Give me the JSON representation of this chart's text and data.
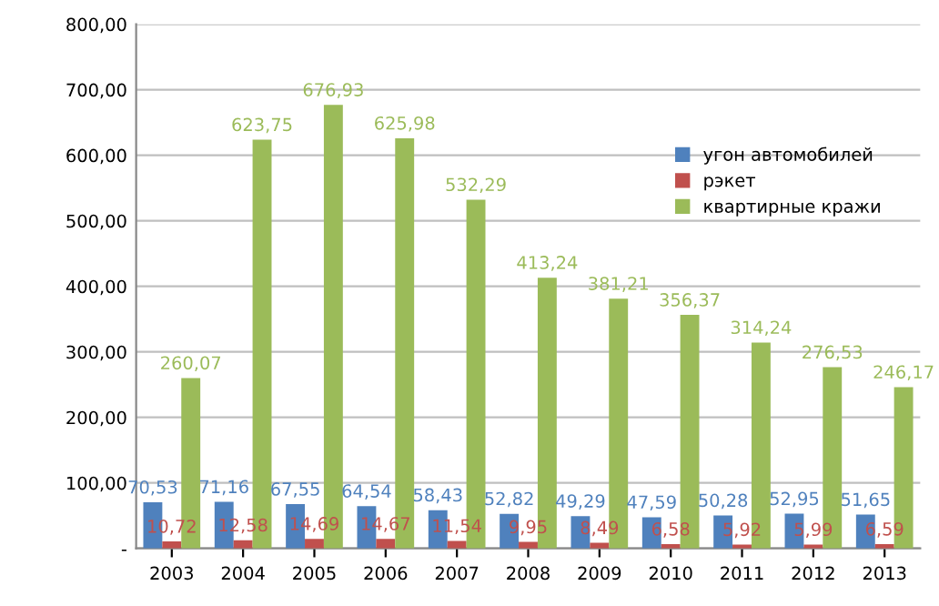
{
  "chart_data": {
    "type": "bar",
    "categories": [
      "2003",
      "2004",
      "2005",
      "2006",
      "2007",
      "2008",
      "2009",
      "2010",
      "2011",
      "2012",
      "2013"
    ],
    "series": [
      {
        "name": "угон автомобилей",
        "color": "#4f81bd",
        "values": [
          70.53,
          71.16,
          67.55,
          64.54,
          58.43,
          52.82,
          49.29,
          47.59,
          50.28,
          52.95,
          51.65
        ],
        "value_labels": [
          "70,53",
          "71,16",
          "67,55",
          "64,54",
          "58,43",
          "52,82",
          "49,29",
          "47,59",
          "50,28",
          "52,95",
          "51,65"
        ]
      },
      {
        "name": "рэкет",
        "color": "#c0504d",
        "values": [
          10.72,
          12.58,
          14.69,
          14.67,
          11.54,
          9.95,
          8.49,
          6.58,
          5.92,
          5.99,
          6.59
        ],
        "value_labels": [
          "10,72",
          "12,58",
          "14,69",
          "14,67",
          "11,54",
          "9,95",
          "8,49",
          "6,58",
          "5,92",
          "5,99",
          "6,59"
        ]
      },
      {
        "name": "квартирные кражи",
        "color": "#9bbb59",
        "values": [
          260.07,
          623.75,
          676.93,
          625.98,
          532.29,
          413.24,
          381.21,
          356.37,
          314.24,
          276.53,
          246.17
        ],
        "value_labels": [
          "260,07",
          "623,75",
          "676,93",
          "625,98",
          "532,29",
          "413,24",
          "381,21",
          "356,37",
          "314,24",
          "276,53",
          "246,17"
        ]
      }
    ],
    "ylim": [
      0,
      800
    ],
    "yticks": [
      {
        "value": 0,
        "label": "-"
      },
      {
        "value": 100,
        "label": "100,00"
      },
      {
        "value": 200,
        "label": "200,00"
      },
      {
        "value": 300,
        "label": "300,00"
      },
      {
        "value": 400,
        "label": "400,00"
      },
      {
        "value": 500,
        "label": "500,00"
      },
      {
        "value": 600,
        "label": "600,00"
      },
      {
        "value": 700,
        "label": "700,00"
      },
      {
        "value": 800,
        "label": "800,00"
      }
    ],
    "grid": "y",
    "legend": "top right"
  }
}
